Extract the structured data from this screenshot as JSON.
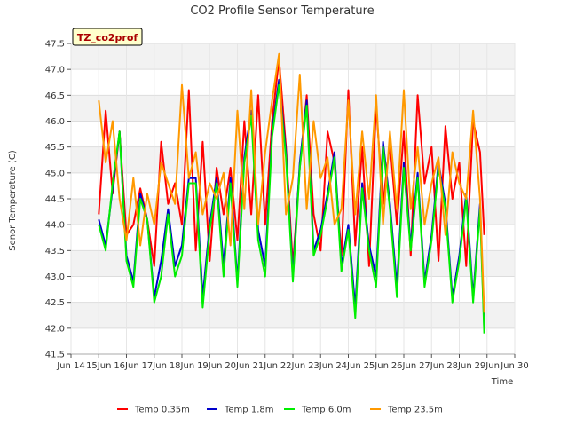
{
  "chart_data": {
    "type": "line",
    "title": "CO2 Profile Sensor Temperature",
    "xlabel": "Time",
    "ylabel": "Senor Temperature (C)",
    "site_label": "TZ_co2prof",
    "xlim": [
      14,
      30
    ],
    "ylim": [
      41.5,
      47.5
    ],
    "x_ticks": [
      14,
      15,
      16,
      17,
      18,
      19,
      20,
      21,
      22,
      23,
      24,
      25,
      26,
      27,
      28,
      29,
      30
    ],
    "x_tick_labels": [
      "Jun 14",
      "15Jun",
      "16Jun",
      "17Jun",
      "18Jun",
      "19Jun",
      "20Jun",
      "21Jun",
      "22Jun",
      "23Jun",
      "24Jun",
      "25Jun",
      "26Jun",
      "27Jun",
      "28Jun",
      "29Jun",
      "Jun 30"
    ],
    "y_ticks": [
      41.5,
      42.0,
      42.5,
      43.0,
      43.5,
      44.0,
      44.5,
      45.0,
      45.5,
      46.0,
      46.5,
      47.0,
      47.5
    ],
    "y_tick_labels": [
      "41.5",
      "42.0",
      "42.5",
      "43.0",
      "43.5",
      "44.0",
      "44.5",
      "45.0",
      "45.5",
      "46.0",
      "46.5",
      "47.0",
      "47.5"
    ],
    "grid": true,
    "legend_position": "bottom",
    "series": [
      {
        "name": "Temp 0.35m",
        "color": "#ff0000",
        "x": [
          15.0,
          15.25,
          15.5,
          15.75,
          16.0,
          16.25,
          16.5,
          16.75,
          17.0,
          17.25,
          17.5,
          17.75,
          18.0,
          18.25,
          18.5,
          18.75,
          19.0,
          19.25,
          19.5,
          19.75,
          20.0,
          20.25,
          20.5,
          20.75,
          21.0,
          21.25,
          21.5,
          21.75,
          22.0,
          22.25,
          22.5,
          22.75,
          23.0,
          23.25,
          23.5,
          23.75,
          24.0,
          24.25,
          24.5,
          24.75,
          25.0,
          25.25,
          25.5,
          25.75,
          26.0,
          26.25,
          26.5,
          26.75,
          27.0,
          27.25,
          27.5,
          27.75,
          28.0,
          28.25,
          28.5,
          28.75,
          28.9
        ],
        "values": [
          44.2,
          46.2,
          44.6,
          45.8,
          43.8,
          44.0,
          44.7,
          44.1,
          43.2,
          45.6,
          44.4,
          44.8,
          44.0,
          46.6,
          43.5,
          45.6,
          43.3,
          45.1,
          44.2,
          45.1,
          43.7,
          46.0,
          44.2,
          46.5,
          44.0,
          46.0,
          47.2,
          45.5,
          43.2,
          45.1,
          46.5,
          44.2,
          43.5,
          45.8,
          45.2,
          43.4,
          46.6,
          43.6,
          45.5,
          43.2,
          46.3,
          44.4,
          45.6,
          44.0,
          45.8,
          43.4,
          46.5,
          44.8,
          45.5,
          43.3,
          45.9,
          44.5,
          45.2,
          43.2,
          46.0,
          45.4,
          43.8
        ]
      },
      {
        "name": "Temp 1.8m",
        "color": "#0000cc",
        "x": [
          15.0,
          15.25,
          15.5,
          15.75,
          16.0,
          16.25,
          16.5,
          16.75,
          17.0,
          17.25,
          17.5,
          17.75,
          18.0,
          18.25,
          18.5,
          18.75,
          19.0,
          19.25,
          19.5,
          19.75,
          20.0,
          20.25,
          20.5,
          20.75,
          21.0,
          21.25,
          21.5,
          21.75,
          22.0,
          22.25,
          22.5,
          22.75,
          23.0,
          23.25,
          23.5,
          23.75,
          24.0,
          24.25,
          24.5,
          24.75,
          25.0,
          25.25,
          25.5,
          25.75,
          26.0,
          26.25,
          26.5,
          26.75,
          27.0,
          27.25,
          27.5,
          27.75,
          28.0,
          28.25,
          28.5,
          28.75,
          28.9
        ],
        "values": [
          44.1,
          43.6,
          44.7,
          45.8,
          43.4,
          42.9,
          44.6,
          44.1,
          42.6,
          43.3,
          44.3,
          43.2,
          43.6,
          44.9,
          44.9,
          42.6,
          44.0,
          44.9,
          43.2,
          44.9,
          42.9,
          45.3,
          46.2,
          43.9,
          43.2,
          45.8,
          46.8,
          45.4,
          43.0,
          45.2,
          46.4,
          43.5,
          43.9,
          44.6,
          45.4,
          43.2,
          44.0,
          42.4,
          44.8,
          43.6,
          43.0,
          45.6,
          44.4,
          42.8,
          45.2,
          43.6,
          45.0,
          42.9,
          43.8,
          45.2,
          44.4,
          42.6,
          43.4,
          44.6,
          42.6,
          44.4,
          42.0
        ]
      },
      {
        "name": "Temp 6.0m",
        "color": "#00ee00",
        "x": [
          15.0,
          15.25,
          15.5,
          15.75,
          16.0,
          16.25,
          16.5,
          16.75,
          17.0,
          17.25,
          17.5,
          17.75,
          18.0,
          18.25,
          18.5,
          18.75,
          19.0,
          19.25,
          19.5,
          19.75,
          20.0,
          20.25,
          20.5,
          20.75,
          21.0,
          21.25,
          21.5,
          21.75,
          22.0,
          22.25,
          22.5,
          22.75,
          23.0,
          23.25,
          23.5,
          23.75,
          24.0,
          24.25,
          24.5,
          24.75,
          25.0,
          25.25,
          25.5,
          25.75,
          26.0,
          26.25,
          26.5,
          26.75,
          27.0,
          27.25,
          27.5,
          27.75,
          28.0,
          28.25,
          28.5,
          28.75,
          28.9
        ],
        "values": [
          44.0,
          43.5,
          44.8,
          45.8,
          43.3,
          42.8,
          44.5,
          44.1,
          42.5,
          43.0,
          44.2,
          43.0,
          43.4,
          44.8,
          44.8,
          42.4,
          43.9,
          44.8,
          43.0,
          44.8,
          42.8,
          45.2,
          46.1,
          43.7,
          43.0,
          45.7,
          46.7,
          45.3,
          42.9,
          45.1,
          46.3,
          43.4,
          43.8,
          44.5,
          45.3,
          43.1,
          43.9,
          42.2,
          44.7,
          43.5,
          42.8,
          45.5,
          44.3,
          42.6,
          45.1,
          43.5,
          44.9,
          42.8,
          43.7,
          45.1,
          44.3,
          42.5,
          43.3,
          44.5,
          42.5,
          44.3,
          41.9
        ]
      },
      {
        "name": "Temp 23.5m",
        "color": "#ff9900",
        "x": [
          15.0,
          15.25,
          15.5,
          15.75,
          16.0,
          16.25,
          16.5,
          16.75,
          17.0,
          17.25,
          17.5,
          17.75,
          18.0,
          18.25,
          18.5,
          18.75,
          19.0,
          19.25,
          19.5,
          19.75,
          20.0,
          20.25,
          20.5,
          20.75,
          21.0,
          21.25,
          21.5,
          21.75,
          22.0,
          22.25,
          22.5,
          22.75,
          23.0,
          23.25,
          23.5,
          23.75,
          24.0,
          24.25,
          24.5,
          24.75,
          25.0,
          25.25,
          25.5,
          25.75,
          26.0,
          26.25,
          26.5,
          26.75,
          27.0,
          27.25,
          27.5,
          27.75,
          28.0,
          28.25,
          28.5,
          28.75,
          28.9
        ],
        "values": [
          46.4,
          45.2,
          46.0,
          44.5,
          43.7,
          44.9,
          43.6,
          44.6,
          44.0,
          45.2,
          44.8,
          44.4,
          46.7,
          44.9,
          45.4,
          44.2,
          44.8,
          44.5,
          45.0,
          43.6,
          46.2,
          44.3,
          46.6,
          44.0,
          45.4,
          46.4,
          47.3,
          44.2,
          44.9,
          46.9,
          44.3,
          46.0,
          44.9,
          45.3,
          44.0,
          44.3,
          46.4,
          44.2,
          45.8,
          44.5,
          46.5,
          44.0,
          45.8,
          44.3,
          46.6,
          44.3,
          45.5,
          44.0,
          44.8,
          45.3,
          43.8,
          45.4,
          44.8,
          44.5,
          46.2,
          44.5,
          42.3
        ]
      }
    ]
  }
}
